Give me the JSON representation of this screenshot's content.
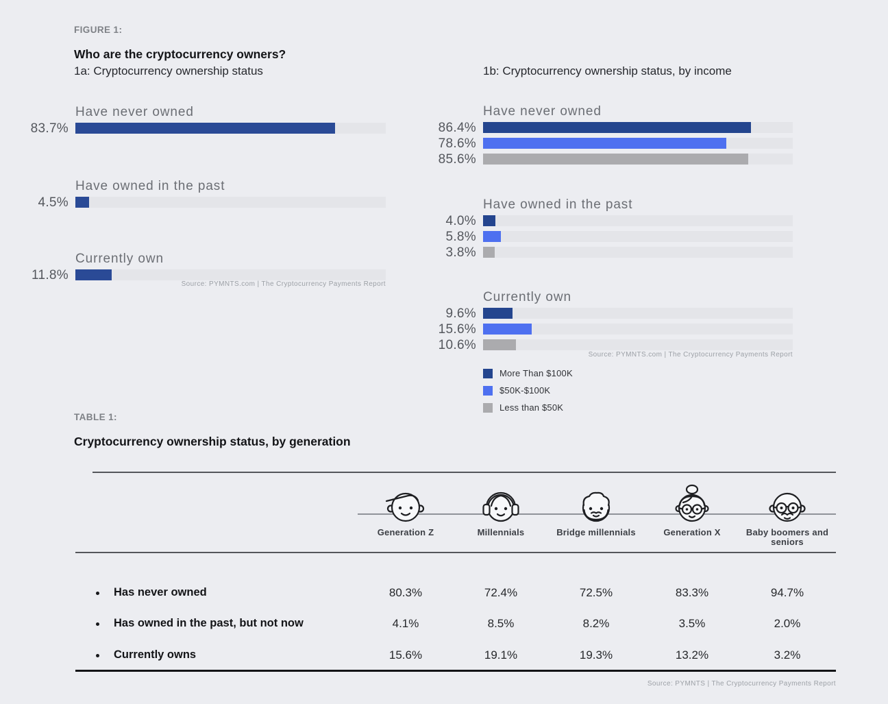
{
  "colors": {
    "page_bg": "#ECEDF1",
    "bar_track": "#E4E5E9",
    "navy_1a": "#2A4A96",
    "navy_1b": "#24458E",
    "blue": "#4E70F0",
    "gray": "#ABABAE"
  },
  "header": {
    "figure_label": "FIGURE 1:",
    "figure_title": "Who are the cryptocurrency owners?"
  },
  "chart_data": [
    {
      "type": "bar",
      "orientation": "horizontal",
      "title": "1a: Cryptocurrency ownership status",
      "categories": [
        "Have never owned",
        "Have owned in the past",
        "Currently own"
      ],
      "values": [
        83.7,
        4.5,
        11.8
      ],
      "value_labels": [
        "83.7%",
        "4.5%",
        "11.8%"
      ],
      "xlim": [
        0,
        100
      ],
      "grid": false,
      "bar_color": "#2A4A96",
      "source": "Source: PYMNTS.com | The Cryptocurrency Payments Report"
    },
    {
      "type": "bar",
      "orientation": "horizontal",
      "title": "1b: Cryptocurrency ownership status, by income",
      "categories": [
        "Have never owned",
        "Have owned in the past",
        "Currently own"
      ],
      "series": [
        {
          "name": "More Than $100K",
          "color": "#24458E",
          "values": [
            86.4,
            4.0,
            9.6
          ],
          "value_labels": [
            "86.4%",
            "4.0%",
            "9.6%"
          ]
        },
        {
          "name": "$50K-$100K",
          "color": "#4E70F0",
          "values": [
            78.6,
            5.8,
            15.6
          ],
          "value_labels": [
            "78.6%",
            "5.8%",
            "15.6%"
          ]
        },
        {
          "name": "Less than $50K",
          "color": "#ABABAE",
          "values": [
            85.6,
            3.8,
            10.6
          ],
          "value_labels": [
            "85.6%",
            "3.8%",
            "10.6%"
          ]
        }
      ],
      "xlim": [
        0,
        100
      ],
      "grid": false,
      "legend_position": "bottom-left",
      "source": "Source: PYMNTS.com | The Cryptocurrency Payments Report"
    },
    {
      "type": "table",
      "label": "TABLE 1:",
      "title": "Cryptocurrency ownership status, by generation",
      "columns": [
        {
          "label": "Generation Z",
          "icon": "gen-z-face-icon"
        },
        {
          "label": "Millennials",
          "icon": "millennials-face-icon"
        },
        {
          "label": "Bridge millennials",
          "icon": "bridge-millennials-face-icon"
        },
        {
          "label": "Generation X",
          "icon": "gen-x-face-icon"
        },
        {
          "label": "Baby boomers and seniors",
          "icon": "baby-boomers-face-icon"
        }
      ],
      "rows": [
        {
          "label": "Has never owned",
          "values": [
            "80.3%",
            "72.4%",
            "72.5%",
            "83.3%",
            "94.7%"
          ]
        },
        {
          "label": "Has owned in the past, but not now",
          "values": [
            "4.1%",
            "8.5%",
            "8.2%",
            "3.5%",
            "2.0%"
          ]
        },
        {
          "label": "Currently owns",
          "values": [
            "15.6%",
            "19.1%",
            "19.3%",
            "13.2%",
            "3.2%"
          ]
        }
      ],
      "source": "Source: PYMNTS | The Cryptocurrency Payments Report"
    }
  ]
}
